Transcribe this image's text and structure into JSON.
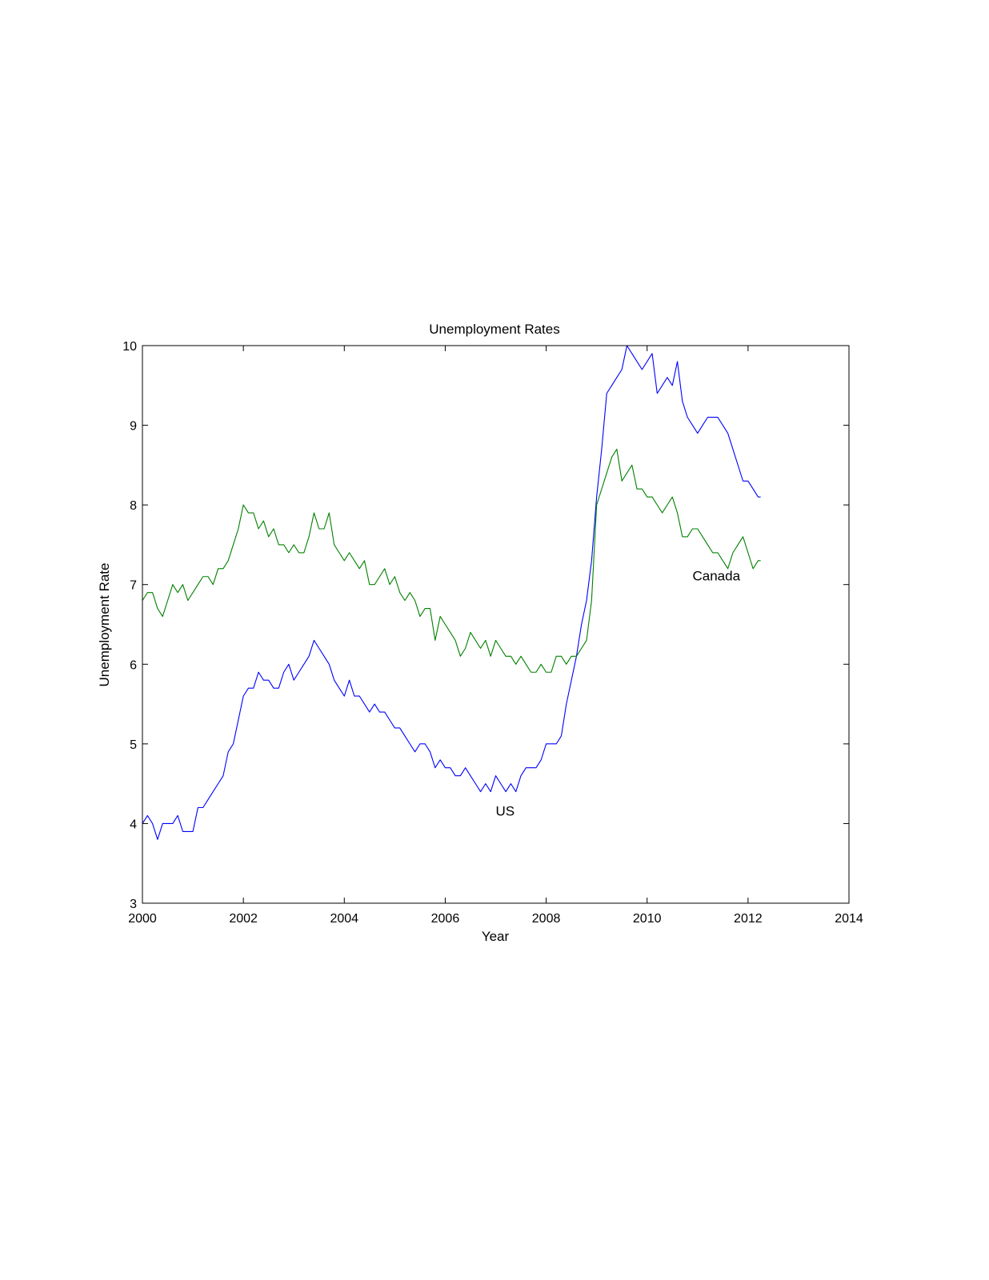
{
  "chart_data": {
    "type": "line",
    "title": "Unemployment Rates",
    "xlabel": "Year",
    "ylabel": "Unemployment Rate",
    "xlim": [
      2000,
      2014
    ],
    "ylim": [
      3,
      10
    ],
    "xticks": [
      2000,
      2002,
      2004,
      2006,
      2008,
      2010,
      2012,
      2014
    ],
    "yticks": [
      3,
      4,
      5,
      6,
      7,
      8,
      9,
      10
    ],
    "grid": false,
    "legend": "none",
    "annotations": [
      {
        "text": "US",
        "x": 2007.0,
        "y": 4.1
      },
      {
        "text": "Canada",
        "x": 2010.9,
        "y": 7.05
      }
    ],
    "series": [
      {
        "color": "#0000ff",
        "x": [
          2000.0,
          2000.1,
          2000.2,
          2000.3,
          2000.4,
          2000.5,
          2000.6,
          2000.7,
          2000.8,
          2000.9,
          2001.0,
          2001.1,
          2001.2,
          2001.3,
          2001.4,
          2001.5,
          2001.6,
          2001.7,
          2001.8,
          2001.9,
          2002.0,
          2002.1,
          2002.2,
          2002.3,
          2002.4,
          2002.5,
          2002.6,
          2002.7,
          2002.8,
          2002.9,
          2003.0,
          2003.1,
          2003.2,
          2003.3,
          2003.4,
          2003.5,
          2003.6,
          2003.7,
          2003.8,
          2003.9,
          2004.0,
          2004.1,
          2004.2,
          2004.3,
          2004.4,
          2004.5,
          2004.6,
          2004.7,
          2004.8,
          2004.9,
          2005.0,
          2005.1,
          2005.2,
          2005.3,
          2005.4,
          2005.5,
          2005.6,
          2005.7,
          2005.8,
          2005.9,
          2006.0,
          2006.1,
          2006.2,
          2006.3,
          2006.4,
          2006.5,
          2006.6,
          2006.7,
          2006.8,
          2006.9,
          2007.0,
          2007.1,
          2007.2,
          2007.3,
          2007.4,
          2007.5,
          2007.6,
          2007.7,
          2007.8,
          2007.9,
          2008.0,
          2008.1,
          2008.2,
          2008.3,
          2008.4,
          2008.5,
          2008.6,
          2008.7,
          2008.8,
          2008.9,
          2009.0,
          2009.1,
          2009.2,
          2009.3,
          2009.4,
          2009.5,
          2009.6,
          2009.7,
          2009.8,
          2009.9,
          2010.0,
          2010.1,
          2010.2,
          2010.3,
          2010.4,
          2010.5,
          2010.6,
          2010.7,
          2010.8,
          2010.9,
          2011.0,
          2011.1,
          2011.2,
          2011.3,
          2011.4,
          2011.5,
          2011.6,
          2011.7,
          2011.8,
          2011.9,
          2012.0,
          2012.1,
          2012.2,
          2012.25
        ],
        "y": [
          4.0,
          4.1,
          4.0,
          3.8,
          4.0,
          4.0,
          4.0,
          4.1,
          3.9,
          3.9,
          3.9,
          4.2,
          4.2,
          4.3,
          4.4,
          4.5,
          4.6,
          4.9,
          5.0,
          5.3,
          5.6,
          5.7,
          5.7,
          5.9,
          5.8,
          5.8,
          5.7,
          5.7,
          5.9,
          6.0,
          5.8,
          5.9,
          6.0,
          6.1,
          6.3,
          6.2,
          6.1,
          6.0,
          5.8,
          5.7,
          5.6,
          5.8,
          5.6,
          5.6,
          5.5,
          5.4,
          5.5,
          5.4,
          5.4,
          5.3,
          5.2,
          5.2,
          5.1,
          5.0,
          4.9,
          5.0,
          5.0,
          4.9,
          4.7,
          4.8,
          4.7,
          4.7,
          4.6,
          4.6,
          4.7,
          4.6,
          4.5,
          4.4,
          4.5,
          4.4,
          4.6,
          4.5,
          4.4,
          4.5,
          4.4,
          4.6,
          4.7,
          4.7,
          4.7,
          4.8,
          5.0,
          5.0,
          5.0,
          5.1,
          5.5,
          5.8,
          6.1,
          6.5,
          6.8,
          7.3,
          8.1,
          8.7,
          9.4,
          9.5,
          9.6,
          9.7,
          10.0,
          9.9,
          9.8,
          9.7,
          9.8,
          9.9,
          9.4,
          9.5,
          9.6,
          9.5,
          9.8,
          9.3,
          9.1,
          9.0,
          8.9,
          9.0,
          9.1,
          9.1,
          9.1,
          9.0,
          8.9,
          8.7,
          8.5,
          8.3,
          8.3,
          8.2,
          8.1,
          8.1
        ]
      },
      {
        "color": "#008000",
        "x": [
          2000.0,
          2000.1,
          2000.2,
          2000.3,
          2000.4,
          2000.5,
          2000.6,
          2000.7,
          2000.8,
          2000.9,
          2001.0,
          2001.1,
          2001.2,
          2001.3,
          2001.4,
          2001.5,
          2001.6,
          2001.7,
          2001.8,
          2001.9,
          2002.0,
          2002.1,
          2002.2,
          2002.3,
          2002.4,
          2002.5,
          2002.6,
          2002.7,
          2002.8,
          2002.9,
          2003.0,
          2003.1,
          2003.2,
          2003.3,
          2003.4,
          2003.5,
          2003.6,
          2003.7,
          2003.8,
          2003.9,
          2004.0,
          2004.1,
          2004.2,
          2004.3,
          2004.4,
          2004.5,
          2004.6,
          2004.7,
          2004.8,
          2004.9,
          2005.0,
          2005.1,
          2005.2,
          2005.3,
          2005.4,
          2005.5,
          2005.6,
          2005.7,
          2005.8,
          2005.9,
          2006.0,
          2006.1,
          2006.2,
          2006.3,
          2006.4,
          2006.5,
          2006.6,
          2006.7,
          2006.8,
          2006.9,
          2007.0,
          2007.1,
          2007.2,
          2007.3,
          2007.4,
          2007.5,
          2007.6,
          2007.7,
          2007.8,
          2007.9,
          2008.0,
          2008.1,
          2008.2,
          2008.3,
          2008.4,
          2008.5,
          2008.6,
          2008.7,
          2008.8,
          2008.9,
          2009.0,
          2009.1,
          2009.2,
          2009.3,
          2009.4,
          2009.5,
          2009.6,
          2009.7,
          2009.8,
          2009.9,
          2010.0,
          2010.1,
          2010.2,
          2010.3,
          2010.4,
          2010.5,
          2010.6,
          2010.7,
          2010.8,
          2010.9,
          2011.0,
          2011.1,
          2011.2,
          2011.3,
          2011.4,
          2011.5,
          2011.6,
          2011.7,
          2011.8,
          2011.9,
          2012.0,
          2012.1,
          2012.2,
          2012.25
        ],
        "y": [
          6.8,
          6.9,
          6.9,
          6.7,
          6.6,
          6.8,
          7.0,
          6.9,
          7.0,
          6.8,
          6.9,
          7.0,
          7.1,
          7.1,
          7.0,
          7.2,
          7.2,
          7.3,
          7.5,
          7.7,
          8.0,
          7.9,
          7.9,
          7.7,
          7.8,
          7.6,
          7.7,
          7.5,
          7.5,
          7.4,
          7.5,
          7.4,
          7.4,
          7.6,
          7.9,
          7.7,
          7.7,
          7.9,
          7.5,
          7.4,
          7.3,
          7.4,
          7.3,
          7.2,
          7.3,
          7.0,
          7.0,
          7.1,
          7.2,
          7.0,
          7.1,
          6.9,
          6.8,
          6.9,
          6.8,
          6.6,
          6.7,
          6.7,
          6.3,
          6.6,
          6.5,
          6.4,
          6.3,
          6.1,
          6.2,
          6.4,
          6.3,
          6.2,
          6.3,
          6.1,
          6.3,
          6.2,
          6.1,
          6.1,
          6.0,
          6.1,
          6.0,
          5.9,
          5.9,
          6.0,
          5.9,
          5.9,
          6.1,
          6.1,
          6.0,
          6.1,
          6.1,
          6.2,
          6.3,
          6.8,
          8.0,
          8.2,
          8.4,
          8.6,
          8.7,
          8.3,
          8.4,
          8.5,
          8.2,
          8.2,
          8.1,
          8.1,
          8.0,
          7.9,
          8.0,
          8.1,
          7.9,
          7.6,
          7.6,
          7.7,
          7.7,
          7.6,
          7.5,
          7.4,
          7.4,
          7.3,
          7.2,
          7.4,
          7.5,
          7.6,
          7.4,
          7.2,
          7.3,
          7.3
        ]
      }
    ]
  }
}
